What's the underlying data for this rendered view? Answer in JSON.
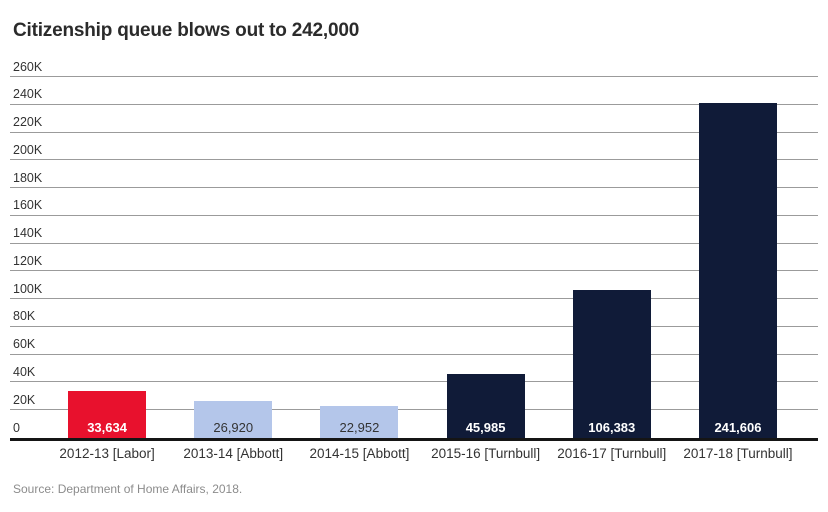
{
  "page": {
    "title": "Citizenship queue blows out to 242,000",
    "source": "Source: Department of Home Affairs, 2018."
  },
  "colors": {
    "labor_red": "#e8112d",
    "abbott_light_blue": "#b4c6ea",
    "turnbull_navy": "#101b38",
    "grid_line": "#9b9b9b",
    "axis_line": "#151515",
    "title_text": "#2b2b2b",
    "tick_text": "#333333",
    "source_text": "#8c8c8c"
  },
  "chart_data": {
    "type": "bar",
    "title": "Citizenship queue blows out to 242,000",
    "categories": [
      "2012-13 [Labor]",
      "2013-14 [Abbott]",
      "2014-15 [Abbott]",
      "2015-16 [Turnbull]",
      "2016-17 [Turnbull]",
      "2017-18 [Turnbull]"
    ],
    "values": [
      33634,
      26920,
      22952,
      45985,
      106383,
      241606
    ],
    "value_labels": [
      "33,634",
      "26,920",
      "22,952",
      "45,985",
      "106,383",
      "241,606"
    ],
    "bar_colors": [
      "#e8112d",
      "#b4c6ea",
      "#b4c6ea",
      "#101b38",
      "#101b38",
      "#101b38"
    ],
    "value_label_colors": [
      "#ffffff",
      "#333333",
      "#333333",
      "#ffffff",
      "#ffffff",
      "#ffffff"
    ],
    "value_label_bold": [
      true,
      false,
      false,
      true,
      true,
      true
    ],
    "xlabel": "",
    "ylabel": "",
    "ylim": [
      0,
      260000
    ],
    "ytick_values": [
      0,
      20000,
      40000,
      60000,
      80000,
      100000,
      120000,
      140000,
      160000,
      180000,
      200000,
      220000,
      240000,
      260000
    ],
    "ytick_labels": [
      "0",
      "20K",
      "40K",
      "60K",
      "80K",
      "100K",
      "120K",
      "140K",
      "160K",
      "180K",
      "200K",
      "220K",
      "240K",
      "260K"
    ],
    "grid": true,
    "legend": false,
    "source": "Source: Department of Home Affairs, 2018."
  }
}
